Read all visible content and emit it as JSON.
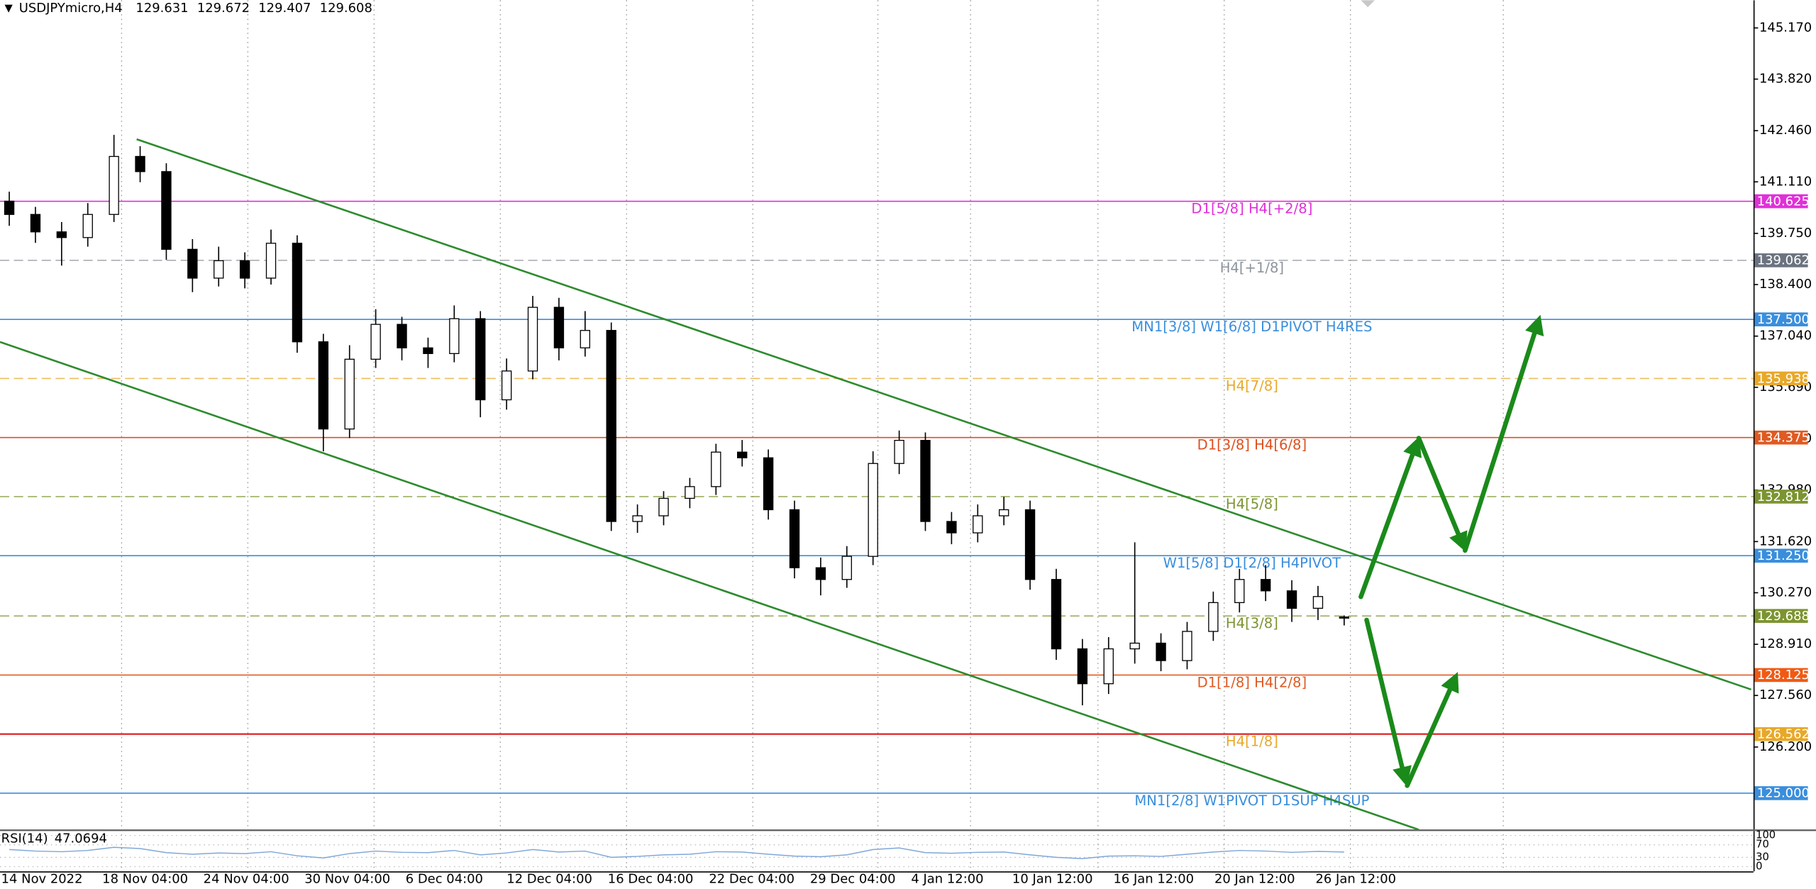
{
  "chart_data": {
    "type": "candlestick",
    "title": "USDJPYmicro,H4",
    "x_labels": [
      "14 Nov 2022",
      "18 Nov 04:00",
      "24 Nov 04:00",
      "30 Nov 04:00",
      "6 Dec 04:00",
      "12 Dec 04:00",
      "16 Dec 04:00",
      "22 Dec 04:00",
      "29 Dec 04:00",
      "4 Jan 12:00",
      "10 Jan 12:00",
      "16 Jan 12:00",
      "20 Jan 12:00",
      "26 Jan 12:00"
    ],
    "open": [
      140.6,
      140.25,
      139.79,
      139.64,
      140.25,
      141.78,
      141.38,
      139.33,
      138.57,
      139.03,
      138.57,
      139.49,
      136.89,
      134.59,
      136.43,
      137.35,
      136.73,
      136.58,
      137.5,
      135.36,
      136.12,
      137.8,
      136.73,
      137.19,
      132.15,
      132.3,
      132.76,
      133.07,
      133.98,
      133.83,
      132.46,
      130.93,
      130.62,
      131.23,
      133.68,
      134.29,
      132.15,
      131.85,
      132.3,
      132.46,
      130.62,
      128.79,
      127.87,
      128.79,
      128.94,
      128.48,
      129.25,
      130.01,
      130.62,
      130.32,
      129.86,
      129.631
    ],
    "high": [
      140.85,
      140.45,
      140.05,
      140.55,
      142.35,
      142.05,
      141.6,
      139.6,
      139.4,
      139.25,
      139.85,
      139.7,
      137.1,
      136.8,
      137.75,
      137.55,
      137.0,
      137.85,
      137.7,
      136.45,
      138.1,
      138.05,
      137.7,
      137.4,
      132.6,
      132.95,
      133.3,
      134.2,
      134.3,
      134.05,
      132.7,
      131.2,
      131.5,
      134.0,
      134.55,
      134.5,
      132.4,
      132.6,
      132.8,
      132.7,
      130.9,
      129.05,
      129.1,
      131.6,
      129.2,
      129.5,
      130.3,
      130.9,
      131.0,
      130.6,
      130.45,
      129.672
    ],
    "low": [
      139.95,
      139.5,
      138.9,
      139.4,
      140.05,
      141.1,
      139.05,
      138.2,
      138.35,
      138.3,
      138.4,
      136.6,
      134.0,
      134.35,
      136.2,
      136.4,
      136.2,
      136.35,
      134.9,
      135.1,
      135.9,
      136.4,
      136.5,
      131.9,
      131.85,
      132.05,
      132.5,
      132.85,
      133.6,
      132.2,
      130.65,
      130.2,
      130.4,
      131.0,
      133.4,
      131.9,
      131.55,
      131.6,
      132.05,
      130.35,
      128.5,
      127.3,
      127.6,
      128.4,
      128.2,
      128.25,
      129.0,
      129.75,
      130.05,
      129.5,
      129.55,
      129.407
    ],
    "close": [
      140.25,
      139.79,
      139.64,
      140.25,
      141.78,
      141.38,
      139.33,
      138.57,
      139.03,
      138.57,
      139.49,
      136.89,
      134.59,
      136.43,
      137.35,
      136.73,
      136.58,
      137.5,
      135.36,
      136.12,
      137.8,
      136.73,
      137.19,
      132.15,
      132.3,
      132.76,
      133.07,
      133.98,
      133.83,
      132.46,
      130.93,
      130.62,
      131.23,
      133.68,
      134.29,
      132.15,
      131.85,
      132.3,
      132.46,
      130.62,
      128.79,
      127.87,
      128.79,
      128.94,
      128.48,
      129.25,
      130.01,
      130.62,
      130.32,
      129.86,
      130.17,
      129.608
    ],
    "ylim": [
      124.02,
      145.9
    ],
    "yticks": [
      {
        "value": 145.17,
        "label": "145.170"
      },
      {
        "value": 143.82,
        "label": "143.820"
      },
      {
        "value": 142.46,
        "label": "142.460"
      },
      {
        "value": 141.11,
        "label": "141.110"
      },
      {
        "value": 139.75,
        "label": "139.750"
      },
      {
        "value": 138.4,
        "label": "138.400"
      },
      {
        "value": 137.04,
        "label": "137.040"
      },
      {
        "value": 135.69,
        "label": "135.690"
      },
      {
        "value": 134.33,
        "label": "134.330"
      },
      {
        "value": 132.98,
        "label": "132.980"
      },
      {
        "value": 131.62,
        "label": "131.620"
      },
      {
        "value": 130.27,
        "label": "130.270"
      },
      {
        "value": 128.91,
        "label": "128.910"
      },
      {
        "value": 127.56,
        "label": "127.560"
      },
      {
        "value": 126.2,
        "label": "126.200"
      }
    ],
    "levels": [
      {
        "value": 140.625,
        "text": "D1[5/8] H4[+2/8]",
        "color": "#e030d8",
        "tag_color": "#e030d8",
        "dash": false
      },
      {
        "value": 139.062,
        "text": "H4[+1/8]",
        "color": "#8c939c",
        "tag_color": "#6b7380",
        "dash": true
      },
      {
        "value": {
          "value": 137.5,
          "label": "137.500"
        },
        "text": "MN1[3/8] W1[6/8] D1PIVOT H4RES",
        "color": "#3a8edc",
        "tag_color": "#3a8edc",
        "dash": false
      },
      {
        "value": 135.938,
        "text": "H4[7/8]",
        "color": "#e8a828",
        "tag_color": "#e8a828",
        "dash": true
      },
      {
        "value": 134.375,
        "text": "D1[3/8] H4[6/8]",
        "color": "#dc5020",
        "tag_color": "#e05a22",
        "dash": false
      },
      {
        "value": 132.812,
        "text": "H4[5/8]",
        "color": "#7c9430",
        "tag_color": "#7c9430",
        "dash": true
      },
      {
        "value": {
          "value": 131.25,
          "label": "131.250"
        },
        "text": "W1[5/8] D1[2/8] H4PIVOT",
        "color": "#3a8edc",
        "tag_color": "#3a8edc",
        "dash": false
      },
      {
        "value": 129.688,
        "text": "H4[3/8]",
        "color": "#7c9430",
        "tag_color": "#7c9430",
        "dash": true
      },
      {
        "value": 128.125,
        "text": "D1[1/8] H4[2/8]",
        "color": "#e05a22",
        "tag_color": "#f05a14",
        "dash": false
      },
      {
        "value": 126.562,
        "text": "H4[1/8]",
        "color": "#e8a828",
        "tag_color": "#e8a828",
        "line_color": "#e02020",
        "dash": false
      },
      {
        "value": {
          "value": 125.0,
          "label": "125.000"
        },
        "text": "MN1[2/8] W1PIVOT D1SUP H4SUP",
        "color": "#3a8edc",
        "tag_color": "#3a8edc",
        "dash": false
      }
    ],
    "indicator": {
      "name": "RSI(14)",
      "color": "#7fa7d8",
      "values": [
        55,
        50,
        48,
        52,
        62,
        58,
        45,
        40,
        44,
        42,
        48,
        35,
        28,
        42,
        50,
        46,
        45,
        52,
        38,
        44,
        55,
        47,
        50,
        30,
        33,
        38,
        40,
        48,
        47,
        40,
        34,
        32,
        38,
        55,
        60,
        45,
        43,
        46,
        47,
        38,
        30,
        26,
        34,
        35,
        33,
        40,
        47,
        52,
        50,
        46,
        49,
        47.0694
      ],
      "ylim": [
        0,
        100
      ],
      "yticks": [
        0,
        30,
        70,
        100
      ]
    }
  }
}
